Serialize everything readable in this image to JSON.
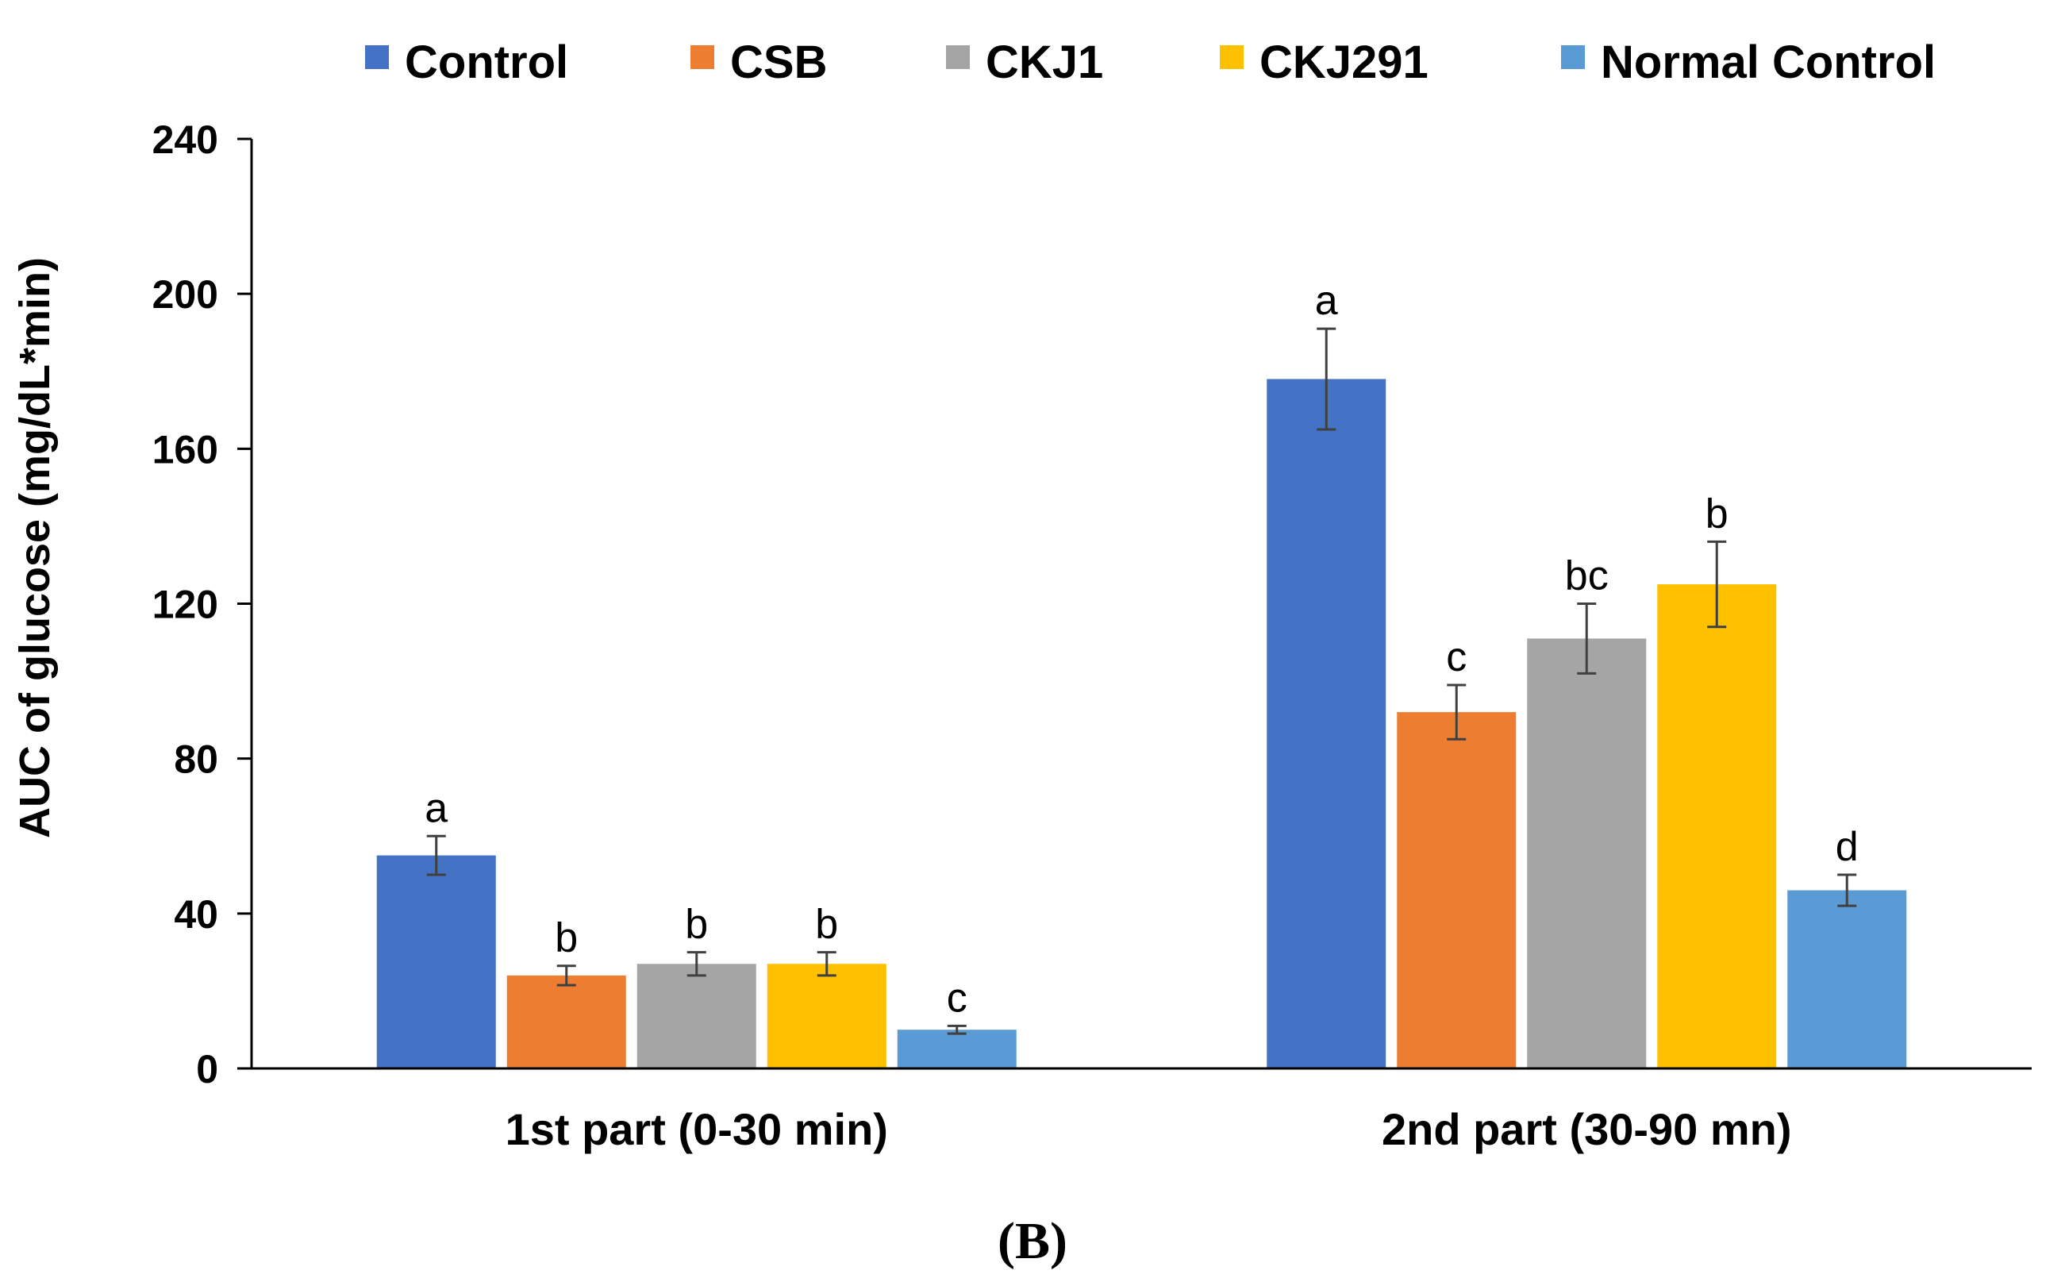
{
  "chart_data": {
    "type": "bar",
    "title": "",
    "panel_label": "(B)",
    "ylabel": "AUC of glucose (mg/dL*min)",
    "xlabel": "",
    "ylim": [
      0,
      240
    ],
    "yticks": [
      0,
      40,
      80,
      120,
      160,
      200,
      240
    ],
    "grid": false,
    "legend_position": "top",
    "categories": [
      "1st part (0-30 min)",
      "2nd part (30-90 mn)"
    ],
    "series": [
      {
        "name": "Control",
        "color": "#4472C4",
        "values": [
          55,
          178
        ],
        "errors": [
          5,
          13
        ],
        "sig": [
          "a",
          "a"
        ]
      },
      {
        "name": "CSB",
        "color": "#ED7D31",
        "values": [
          24,
          92
        ],
        "errors": [
          2.5,
          7
        ],
        "sig": [
          "b",
          "c"
        ]
      },
      {
        "name": "CKJ1",
        "color": "#A5A5A5",
        "values": [
          27,
          111
        ],
        "errors": [
          3,
          9
        ],
        "sig": [
          "b",
          "bc"
        ]
      },
      {
        "name": "CKJ291",
        "color": "#FFC000",
        "values": [
          27,
          125
        ],
        "errors": [
          3,
          11
        ],
        "sig": [
          "b",
          "b"
        ]
      },
      {
        "name": "Normal Control",
        "color": "#5B9BD5",
        "values": [
          10,
          46
        ],
        "errors": [
          1,
          4
        ],
        "sig": [
          "c",
          "d"
        ]
      }
    ]
  }
}
